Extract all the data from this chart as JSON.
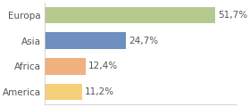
{
  "categories": [
    "Europa",
    "Asia",
    "Africa",
    "America"
  ],
  "values": [
    51.7,
    24.7,
    12.4,
    11.2
  ],
  "labels": [
    "51,7%",
    "24,7%",
    "12,4%",
    "11,2%"
  ],
  "colors": [
    "#b5c98e",
    "#6e8fbf",
    "#f0b080",
    "#f5d07a"
  ],
  "xlim": [
    0,
    58
  ],
  "bar_height": 0.65,
  "background_color": "#ffffff",
  "plot_bg_color": "#ffffff",
  "label_fontsize": 7.5,
  "tick_fontsize": 7.5,
  "label_color": "#555555",
  "tick_color": "#555555",
  "grid_color": "#dddddd",
  "divider_color": "#cccccc"
}
